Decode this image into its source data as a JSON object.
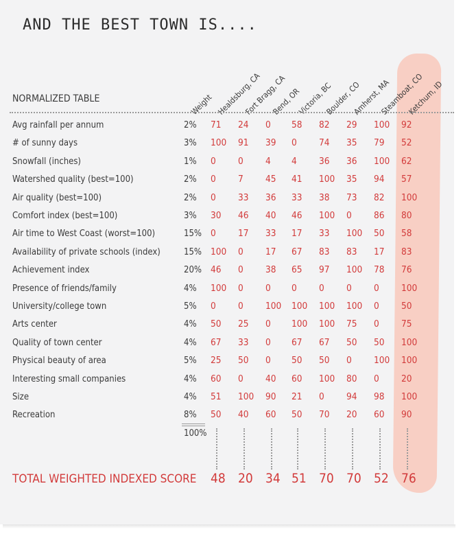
{
  "title": "AND THE BEST TOWN IS....",
  "table_label": "NORMALIZED TABLE",
  "score_label": "TOTAL WEIGHTED INDEXED SCORE",
  "weight_total": "100%",
  "highlight_color": "#f8cfc4",
  "value_color": "#d23a3a",
  "chart_data": {
    "type": "table",
    "title": "AND THE BEST TOWN IS....",
    "weight_header": "Weight",
    "columns": [
      "Healdsburg, CA",
      "Fort Bragg, CA",
      "Bend, OR",
      "Victoria, BC",
      "Boulder, CO",
      "Amherst, MA",
      "Steamboat, CO",
      "Ketchum, ID"
    ],
    "highlighted_column": "Ketchum, ID",
    "rows": [
      {
        "label": "Avg rainfall per annum",
        "weight": "2%",
        "values": [
          71,
          24,
          0,
          58,
          82,
          29,
          100,
          92
        ]
      },
      {
        "label": "# of sunny days",
        "weight": "3%",
        "values": [
          100,
          91,
          39,
          0,
          74,
          35,
          79,
          52
        ]
      },
      {
        "label": "Snowfall (inches)",
        "weight": "1%",
        "values": [
          0,
          0,
          4,
          4,
          36,
          36,
          100,
          62
        ]
      },
      {
        "label": "Watershed quality (best=100)",
        "weight": "2%",
        "values": [
          0,
          7,
          45,
          41,
          100,
          35,
          94,
          57
        ]
      },
      {
        "label": "Air quality (best=100)",
        "weight": "2%",
        "values": [
          0,
          33,
          36,
          33,
          38,
          73,
          82,
          100
        ]
      },
      {
        "label": "Comfort index (best=100)",
        "weight": "3%",
        "values": [
          30,
          46,
          40,
          46,
          100,
          0,
          86,
          80
        ]
      },
      {
        "label": "Air time to West Coast (worst=100)",
        "weight": "15%",
        "values": [
          0,
          17,
          33,
          17,
          33,
          100,
          50,
          58
        ]
      },
      {
        "label": "Availability of private schools (index)",
        "weight": "15%",
        "values": [
          100,
          0,
          17,
          67,
          83,
          83,
          17,
          83
        ]
      },
      {
        "label": "Achievement index",
        "weight": "20%",
        "values": [
          46,
          0,
          38,
          65,
          97,
          100,
          78,
          76
        ]
      },
      {
        "label": "Presence of friends/family",
        "weight": "4%",
        "values": [
          100,
          0,
          0,
          0,
          0,
          0,
          0,
          100
        ]
      },
      {
        "label": "University/college town",
        "weight": "5%",
        "values": [
          0,
          0,
          100,
          100,
          100,
          100,
          0,
          50
        ]
      },
      {
        "label": "Arts center",
        "weight": "4%",
        "values": [
          50,
          25,
          0,
          100,
          100,
          75,
          0,
          75
        ]
      },
      {
        "label": "Quality of town center",
        "weight": "4%",
        "values": [
          67,
          33,
          0,
          67,
          67,
          50,
          50,
          100
        ]
      },
      {
        "label": "Physical beauty of area",
        "weight": "5%",
        "values": [
          25,
          50,
          0,
          50,
          50,
          0,
          100,
          100
        ]
      },
      {
        "label": "Interesting small companies",
        "weight": "4%",
        "values": [
          60,
          0,
          40,
          60,
          100,
          80,
          0,
          20
        ]
      },
      {
        "label": "Size",
        "weight": "4%",
        "values": [
          51,
          100,
          90,
          21,
          0,
          94,
          98,
          100
        ]
      },
      {
        "label": "Recreation",
        "weight": "8%",
        "values": [
          50,
          40,
          60,
          50,
          70,
          20,
          60,
          90
        ]
      }
    ],
    "totals": [
      48,
      20,
      34,
      51,
      70,
      70,
      52,
      76
    ]
  }
}
